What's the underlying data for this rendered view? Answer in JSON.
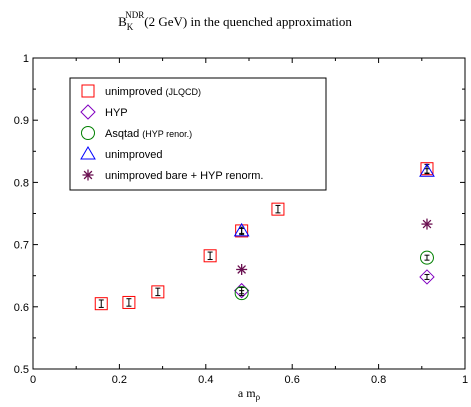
{
  "chart_data": {
    "type": "scatter",
    "title_main": "B",
    "title_sub": "K",
    "title_sup": "NDR",
    "title_rest": "(2 GeV) in the quenched approximation",
    "xlabel_main": "a m",
    "xlabel_sub": "ρ",
    "ylabel": "",
    "xlim": [
      0,
      1
    ],
    "ylim": [
      0.5,
      1
    ],
    "xticks": [
      0,
      0.2,
      0.4,
      0.6,
      0.8,
      1
    ],
    "xtick_labels": [
      "0",
      "0.2",
      "0.4",
      "0.6",
      "0.8",
      "1"
    ],
    "yticks": [
      0.5,
      0.6,
      0.7,
      0.8,
      0.9,
      1
    ],
    "ytick_labels": [
      "0.5",
      "0.6",
      "0.7",
      "0.8",
      "0.9",
      "1"
    ],
    "grid": false,
    "legend_position": "top-left",
    "series": [
      {
        "name": "unimproved",
        "name_note": "(JLQCD)",
        "marker": "square",
        "color": "#ff0000",
        "points": [
          {
            "x": 0.158,
            "y": 0.605,
            "err": 0.006
          },
          {
            "x": 0.222,
            "y": 0.607,
            "err": 0.006
          },
          {
            "x": 0.289,
            "y": 0.624,
            "err": 0.006
          },
          {
            "x": 0.41,
            "y": 0.682,
            "err": 0.006
          },
          {
            "x": 0.483,
            "y": 0.722,
            "err": 0.006
          },
          {
            "x": 0.567,
            "y": 0.757,
            "err": 0.006
          },
          {
            "x": 0.912,
            "y": 0.822,
            "err": 0.007
          }
        ]
      },
      {
        "name": "HYP",
        "name_note": "",
        "marker": "diamond",
        "color": "#8000c0",
        "points": [
          {
            "x": 0.483,
            "y": 0.626,
            "err": 0.005
          },
          {
            "x": 0.912,
            "y": 0.648,
            "err": 0.004
          }
        ]
      },
      {
        "name": "Asqtad",
        "name_note": "(HYP renor.)",
        "marker": "circle",
        "color": "#008000",
        "points": [
          {
            "x": 0.483,
            "y": 0.622,
            "err": 0.004
          },
          {
            "x": 0.912,
            "y": 0.679,
            "err": 0.004
          }
        ]
      },
      {
        "name": "unimproved",
        "name_note": "",
        "marker": "triangle",
        "color": "#0000ff",
        "points": [
          {
            "x": 0.483,
            "y": 0.722,
            "err": 0.004
          },
          {
            "x": 0.912,
            "y": 0.818,
            "err": 0.004
          }
        ]
      },
      {
        "name": "unimproved bare + HYP renorm.",
        "name_note": "",
        "marker": "star",
        "color": "#6a1050",
        "points": [
          {
            "x": 0.483,
            "y": 0.66,
            "err": 0.0
          },
          {
            "x": 0.912,
            "y": 0.733,
            "err": 0.0
          }
        ]
      }
    ]
  }
}
